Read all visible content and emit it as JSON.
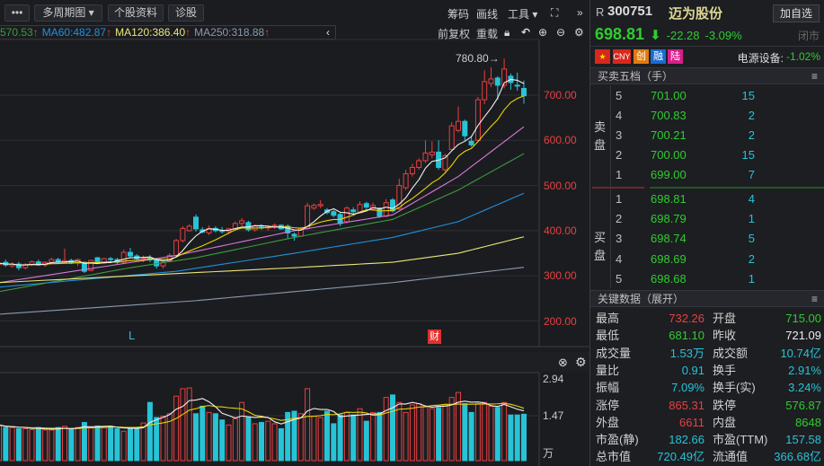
{
  "toolbar": {
    "more": "•••",
    "multi_period": "多周期图 ▾",
    "stock_info": "个股资料",
    "diagnose": "诊股",
    "chips": "筹码",
    "draw": "画线",
    "tools": "工具 ▾",
    "expand": "⛶",
    "collapse": "»"
  },
  "ma_bar": {
    "ma30": "570.53",
    "ma60": "MA60:482.87",
    "ma120": "MA120:386.40",
    "ma250": "MA250:318.88",
    "up_arrow": "↑",
    "prev": "‹",
    "fq": "前复权",
    "reload": "重载"
  },
  "price_axis": [
    "700.00",
    "600.00",
    "500.00",
    "400.00",
    "300.00",
    "200.00"
  ],
  "high_mark": "780.80→",
  "markers": {
    "l": "L",
    "cai": "财"
  },
  "volume_axis": {
    "top": "2.94",
    "mid": "1.47",
    "unit": "万"
  },
  "stock": {
    "prefix": "R",
    "code": "300751",
    "name": "迈为股份",
    "add_watch": "加自选",
    "price": "698.81",
    "arrow": "🡇",
    "change": "-22.28",
    "change_pct": "-3.09%",
    "status": "闭市",
    "badges": [
      "CNY",
      "创",
      "融",
      "陆"
    ],
    "sector": "电源设备:",
    "sector_pct": "-1.02%"
  },
  "order_book": {
    "title": "买卖五档（手）",
    "sell_label": "卖盘",
    "buy_label": "买盘",
    "sell": [
      {
        "lv": "5",
        "price": "701.00",
        "vol": "15"
      },
      {
        "lv": "4",
        "price": "700.83",
        "vol": "2"
      },
      {
        "lv": "3",
        "price": "700.21",
        "vol": "2"
      },
      {
        "lv": "2",
        "price": "700.00",
        "vol": "15"
      },
      {
        "lv": "1",
        "price": "699.00",
        "vol": "7"
      }
    ],
    "buy": [
      {
        "lv": "1",
        "price": "698.81",
        "vol": "4"
      },
      {
        "lv": "2",
        "price": "698.79",
        "vol": "1"
      },
      {
        "lv": "3",
        "price": "698.74",
        "vol": "5"
      },
      {
        "lv": "4",
        "price": "698.69",
        "vol": "2"
      },
      {
        "lv": "5",
        "price": "698.68",
        "vol": "1"
      }
    ]
  },
  "key_data": {
    "title": "关键数据（展开）",
    "rows": [
      {
        "l1": "最高",
        "v1": "732.26",
        "c1": "red",
        "l2": "开盘",
        "v2": "715.00",
        "c2": "green"
      },
      {
        "l1": "最低",
        "v1": "681.10",
        "c1": "green",
        "l2": "昨收",
        "v2": "721.09",
        "c2": "white"
      },
      {
        "l1": "成交量",
        "v1": "1.53万",
        "c1": "cyan",
        "l2": "成交额",
        "v2": "10.74亿",
        "c2": "cyan"
      },
      {
        "l1": "量比",
        "v1": "0.91",
        "c1": "cyan",
        "l2": "换手",
        "v2": "2.91%",
        "c2": "cyan"
      },
      {
        "l1": "振幅",
        "v1": "7.09%",
        "c1": "cyan",
        "l2": "换手(实)",
        "v2": "3.24%",
        "c2": "cyan"
      },
      {
        "l1": "涨停",
        "v1": "865.31",
        "c1": "red",
        "l2": "跌停",
        "v2": "576.87",
        "c2": "green"
      },
      {
        "l1": "外盘",
        "v1": "6611",
        "c1": "red",
        "l2": "内盘",
        "v2": "8648",
        "c2": "green"
      },
      {
        "l1": "市盈(静)",
        "v1": "182.66",
        "c1": "cyan",
        "l2": "市盈(TTM)",
        "v2": "157.58",
        "c2": "cyan"
      },
      {
        "l1": "总市值",
        "v1": "720.49亿",
        "c1": "cyan",
        "l2": "流通值",
        "v2": "366.68亿",
        "c2": "cyan"
      }
    ]
  },
  "colors": {
    "up": "#e84040",
    "down": "#27c3d6",
    "green": "#2fcc2f",
    "ma5": "#f0f0f0",
    "ma10": "#e8d400",
    "ma20": "#d878d8",
    "ma30": "#3c9c3c",
    "ma60": "#2090dc",
    "ma120": "#e8e878",
    "ma250": "#8a9aae"
  },
  "chart_data": {
    "type": "candlestick",
    "ylim": [
      150,
      800
    ],
    "candles_ohlc": [
      [
        325,
        332,
        318,
        328
      ],
      [
        330,
        336,
        320,
        324
      ],
      [
        322,
        330,
        318,
        326
      ],
      [
        326,
        331,
        312,
        318
      ],
      [
        318,
        328,
        314,
        325
      ],
      [
        325,
        334,
        322,
        331
      ],
      [
        331,
        336,
        322,
        324
      ],
      [
        324,
        332,
        320,
        330
      ],
      [
        330,
        340,
        326,
        336
      ],
      [
        336,
        340,
        328,
        330
      ],
      [
        330,
        360,
        328,
        334
      ],
      [
        334,
        338,
        326,
        328
      ],
      [
        328,
        338,
        322,
        336
      ],
      [
        330,
        332,
        306,
        310
      ],
      [
        312,
        336,
        310,
        334
      ],
      [
        340,
        342,
        326,
        328
      ],
      [
        328,
        340,
        326,
        338
      ],
      [
        338,
        342,
        330,
        336
      ],
      [
        336,
        340,
        326,
        330
      ],
      [
        330,
        358,
        328,
        352
      ],
      [
        352,
        362,
        340,
        344
      ],
      [
        344,
        348,
        334,
        338
      ],
      [
        338,
        345,
        330,
        340
      ],
      [
        340,
        346,
        330,
        335
      ],
      [
        335,
        340,
        316,
        322
      ],
      [
        322,
        332,
        316,
        330
      ],
      [
        333,
        350,
        330,
        345
      ],
      [
        345,
        382,
        342,
        378
      ],
      [
        378,
        410,
        374,
        405
      ],
      [
        400,
        414,
        398,
        410
      ],
      [
        430,
        436,
        398,
        404
      ],
      [
        402,
        408,
        394,
        397
      ],
      [
        395,
        412,
        390,
        405
      ],
      [
        405,
        410,
        396,
        400
      ],
      [
        400,
        408,
        394,
        398
      ],
      [
        398,
        406,
        392,
        404
      ],
      [
        404,
        420,
        400,
        416
      ],
      [
        416,
        428,
        410,
        422
      ],
      [
        418,
        422,
        398,
        402
      ],
      [
        402,
        414,
        398,
        410
      ],
      [
        408,
        414,
        402,
        406
      ],
      [
        406,
        412,
        400,
        410
      ],
      [
        410,
        416,
        404,
        412
      ],
      [
        412,
        414,
        402,
        404
      ],
      [
        410,
        414,
        382,
        395
      ],
      [
        392,
        396,
        378,
        388
      ],
      [
        388,
        408,
        386,
        405
      ],
      [
        405,
        462,
        402,
        455
      ],
      [
        450,
        460,
        446,
        456
      ],
      [
        455,
        468,
        450,
        458
      ],
      [
        446,
        450,
        436,
        440
      ],
      [
        442,
        446,
        430,
        434
      ],
      [
        436,
        440,
        410,
        416
      ],
      [
        420,
        454,
        416,
        450
      ],
      [
        446,
        452,
        438,
        442
      ],
      [
        440,
        465,
        438,
        458
      ],
      [
        460,
        464,
        448,
        452
      ],
      [
        448,
        462,
        444,
        456
      ],
      [
        450,
        452,
        428,
        432
      ],
      [
        432,
        470,
        430,
        462
      ],
      [
        468,
        472,
        440,
        444
      ],
      [
        448,
        515,
        446,
        500
      ],
      [
        495,
        535,
        490,
        526
      ],
      [
        526,
        548,
        520,
        540
      ],
      [
        540,
        560,
        535,
        555
      ],
      [
        555,
        600,
        550,
        572
      ],
      [
        568,
        598,
        560,
        574
      ],
      [
        574,
        600,
        535,
        540
      ],
      [
        535,
        570,
        530,
        566
      ],
      [
        580,
        640,
        578,
        632
      ],
      [
        622,
        675,
        618,
        642
      ],
      [
        642,
        646,
        600,
        610
      ],
      [
        598,
        610,
        586,
        590
      ],
      [
        600,
        696,
        596,
        690
      ],
      [
        690,
        755,
        680,
        730
      ],
      [
        726,
        762,
        718,
        736
      ],
      [
        738,
        742,
        690,
        722
      ],
      [
        722,
        780.8,
        715,
        758
      ],
      [
        742,
        748,
        712,
        728
      ],
      [
        722,
        750,
        710,
        721.09
      ],
      [
        715,
        732.26,
        681.1,
        698.81
      ]
    ],
    "volume_wan": [
      1.1,
      1.0,
      1.0,
      0.95,
      0.95,
      0.92,
      1.0,
      0.9,
      0.9,
      1.0,
      1.05,
      0.92,
      1.0,
      1.2,
      0.98,
      1.06,
      1.0,
      1.05,
      0.95,
      0.85,
      1.0,
      0.98,
      1.18,
      2.0,
      1.4,
      1.45,
      1.55,
      2.25,
      2.55,
      2.58,
      1.55,
      1.85,
      1.6,
      1.55,
      1.3,
      1.1,
      1.35,
      2.0,
      1.4,
      1.15,
      1.2,
      1.25,
      1.15,
      0.95,
      1.6,
      1.65,
      1.55,
      2.55,
      1.45,
      1.4,
      1.65,
      1.15,
      1.5,
      1.6,
      1.5,
      1.75,
      1.25,
      1.6,
      1.6,
      2.2,
      2.3,
      2.0,
      1.6,
      1.9,
      1.95,
      1.85,
      1.75,
      1.8,
      1.9,
      2.2,
      2.4,
      1.95,
      1.6,
      1.95,
      2.0,
      1.85,
      1.8,
      2.0,
      1.5,
      1.5,
      1.53
    ],
    "ma_anchors": {
      "ma20": [
        [
          0,
          285
        ],
        [
          27,
          345
        ],
        [
          45,
          400
        ],
        [
          60,
          435
        ],
        [
          70,
          520
        ],
        [
          80,
          630
        ]
      ],
      "ma30": [
        [
          0,
          265
        ],
        [
          20,
          318
        ],
        [
          30,
          340
        ],
        [
          45,
          385
        ],
        [
          60,
          425
        ],
        [
          70,
          490
        ],
        [
          80,
          570.53
        ]
      ],
      "ma60": [
        [
          0,
          275
        ],
        [
          27,
          310
        ],
        [
          45,
          350
        ],
        [
          60,
          385
        ],
        [
          70,
          420
        ],
        [
          80,
          482.87
        ]
      ],
      "ma120": [
        [
          0,
          285
        ],
        [
          27,
          305
        ],
        [
          45,
          318
        ],
        [
          60,
          330
        ],
        [
          70,
          350
        ],
        [
          80,
          386.4
        ]
      ],
      "ma250": [
        [
          0,
          215
        ],
        [
          30,
          245
        ],
        [
          60,
          285
        ],
        [
          80,
          318.88
        ]
      ]
    }
  }
}
